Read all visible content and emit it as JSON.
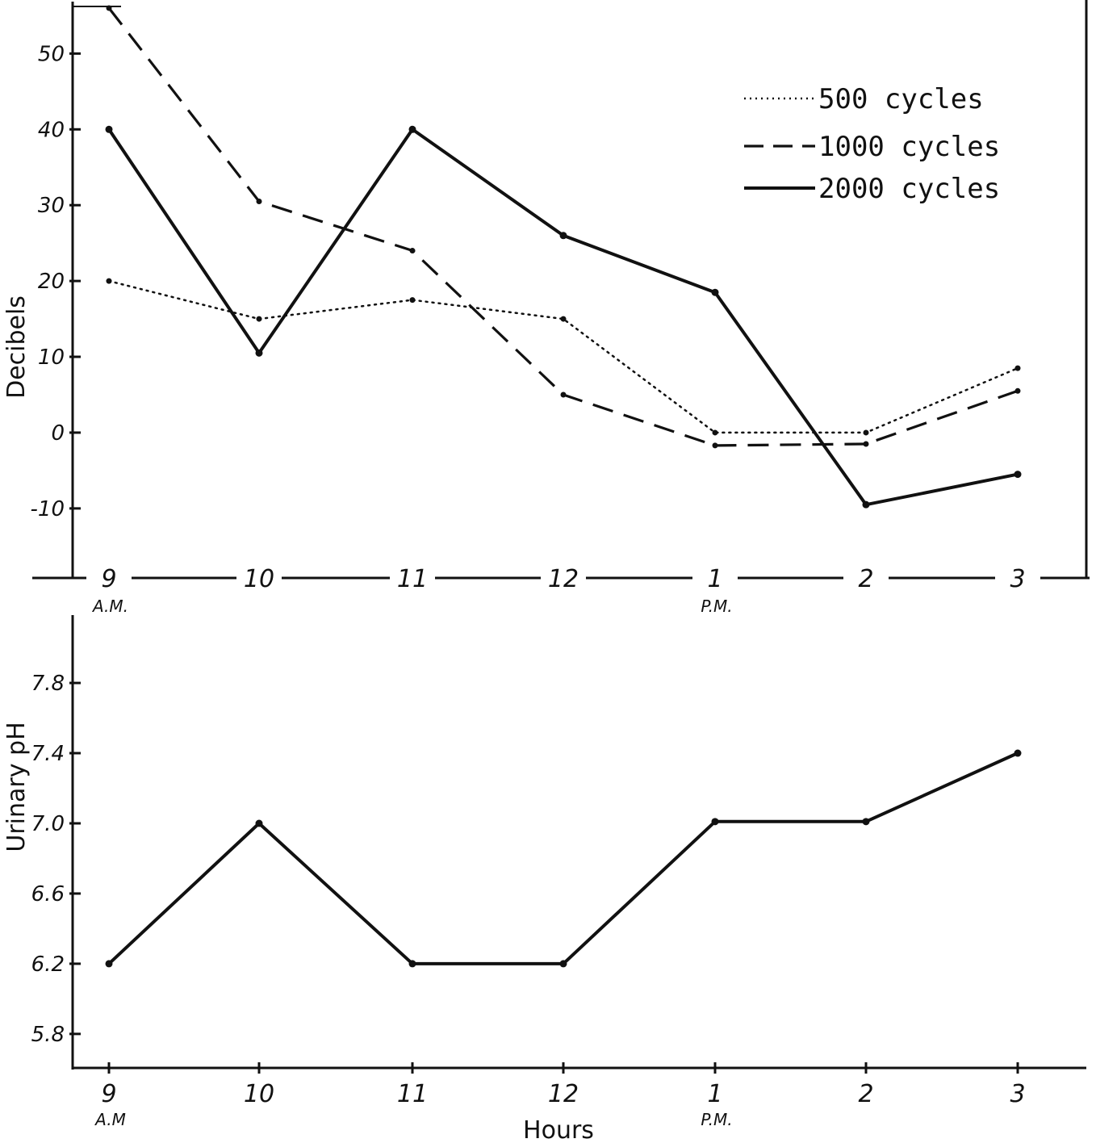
{
  "chart_data": [
    {
      "type": "line",
      "ylabel": "Decibels",
      "ylim": [
        -18,
        56
      ],
      "yticks": [
        "50",
        "40",
        "30",
        "20",
        "10",
        "0",
        "-10"
      ],
      "ytick_values": [
        50,
        40,
        30,
        20,
        10,
        0,
        -10
      ],
      "categories": [
        "9",
        "10",
        "11",
        "12",
        "1",
        "2",
        "3"
      ],
      "category_sublabels": [
        "A.M.",
        "",
        "",
        "",
        "P.M.",
        "",
        ""
      ],
      "legend_position": "top-right",
      "series": [
        {
          "name": "500 cycles",
          "style": "dotted",
          "values": [
            20,
            15,
            17.5,
            15,
            0,
            0,
            8.5
          ]
        },
        {
          "name": "1000 cycles",
          "style": "dashed",
          "values": [
            56,
            30.5,
            24,
            5,
            -1.7,
            -1.5,
            5.5
          ]
        },
        {
          "name": "2000 cycles",
          "style": "solid",
          "values": [
            40,
            10.5,
            40,
            26,
            18.5,
            -9.5,
            -5.5
          ]
        }
      ],
      "grid": false
    },
    {
      "type": "line",
      "ylabel": "Urinary pH",
      "xlabel": "Hours",
      "ylim": [
        5.62,
        8.15
      ],
      "yticks": [
        "7.8",
        "7.4",
        "7.0",
        "6.6",
        "6.2",
        "5.8"
      ],
      "ytick_values": [
        7.8,
        7.4,
        7.0,
        6.6,
        6.2,
        5.8
      ],
      "categories": [
        "9",
        "10",
        "11",
        "12",
        "1",
        "2",
        "3"
      ],
      "category_sublabels": [
        "A.M",
        "",
        "",
        "",
        "P.M.",
        "",
        ""
      ],
      "series": [
        {
          "values": [
            6.2,
            7.0,
            6.2,
            6.2,
            7.01,
            7.01,
            7.4
          ]
        }
      ],
      "grid": false
    }
  ],
  "colors": {
    "ink": "#111111",
    "background": "#ffffff"
  }
}
